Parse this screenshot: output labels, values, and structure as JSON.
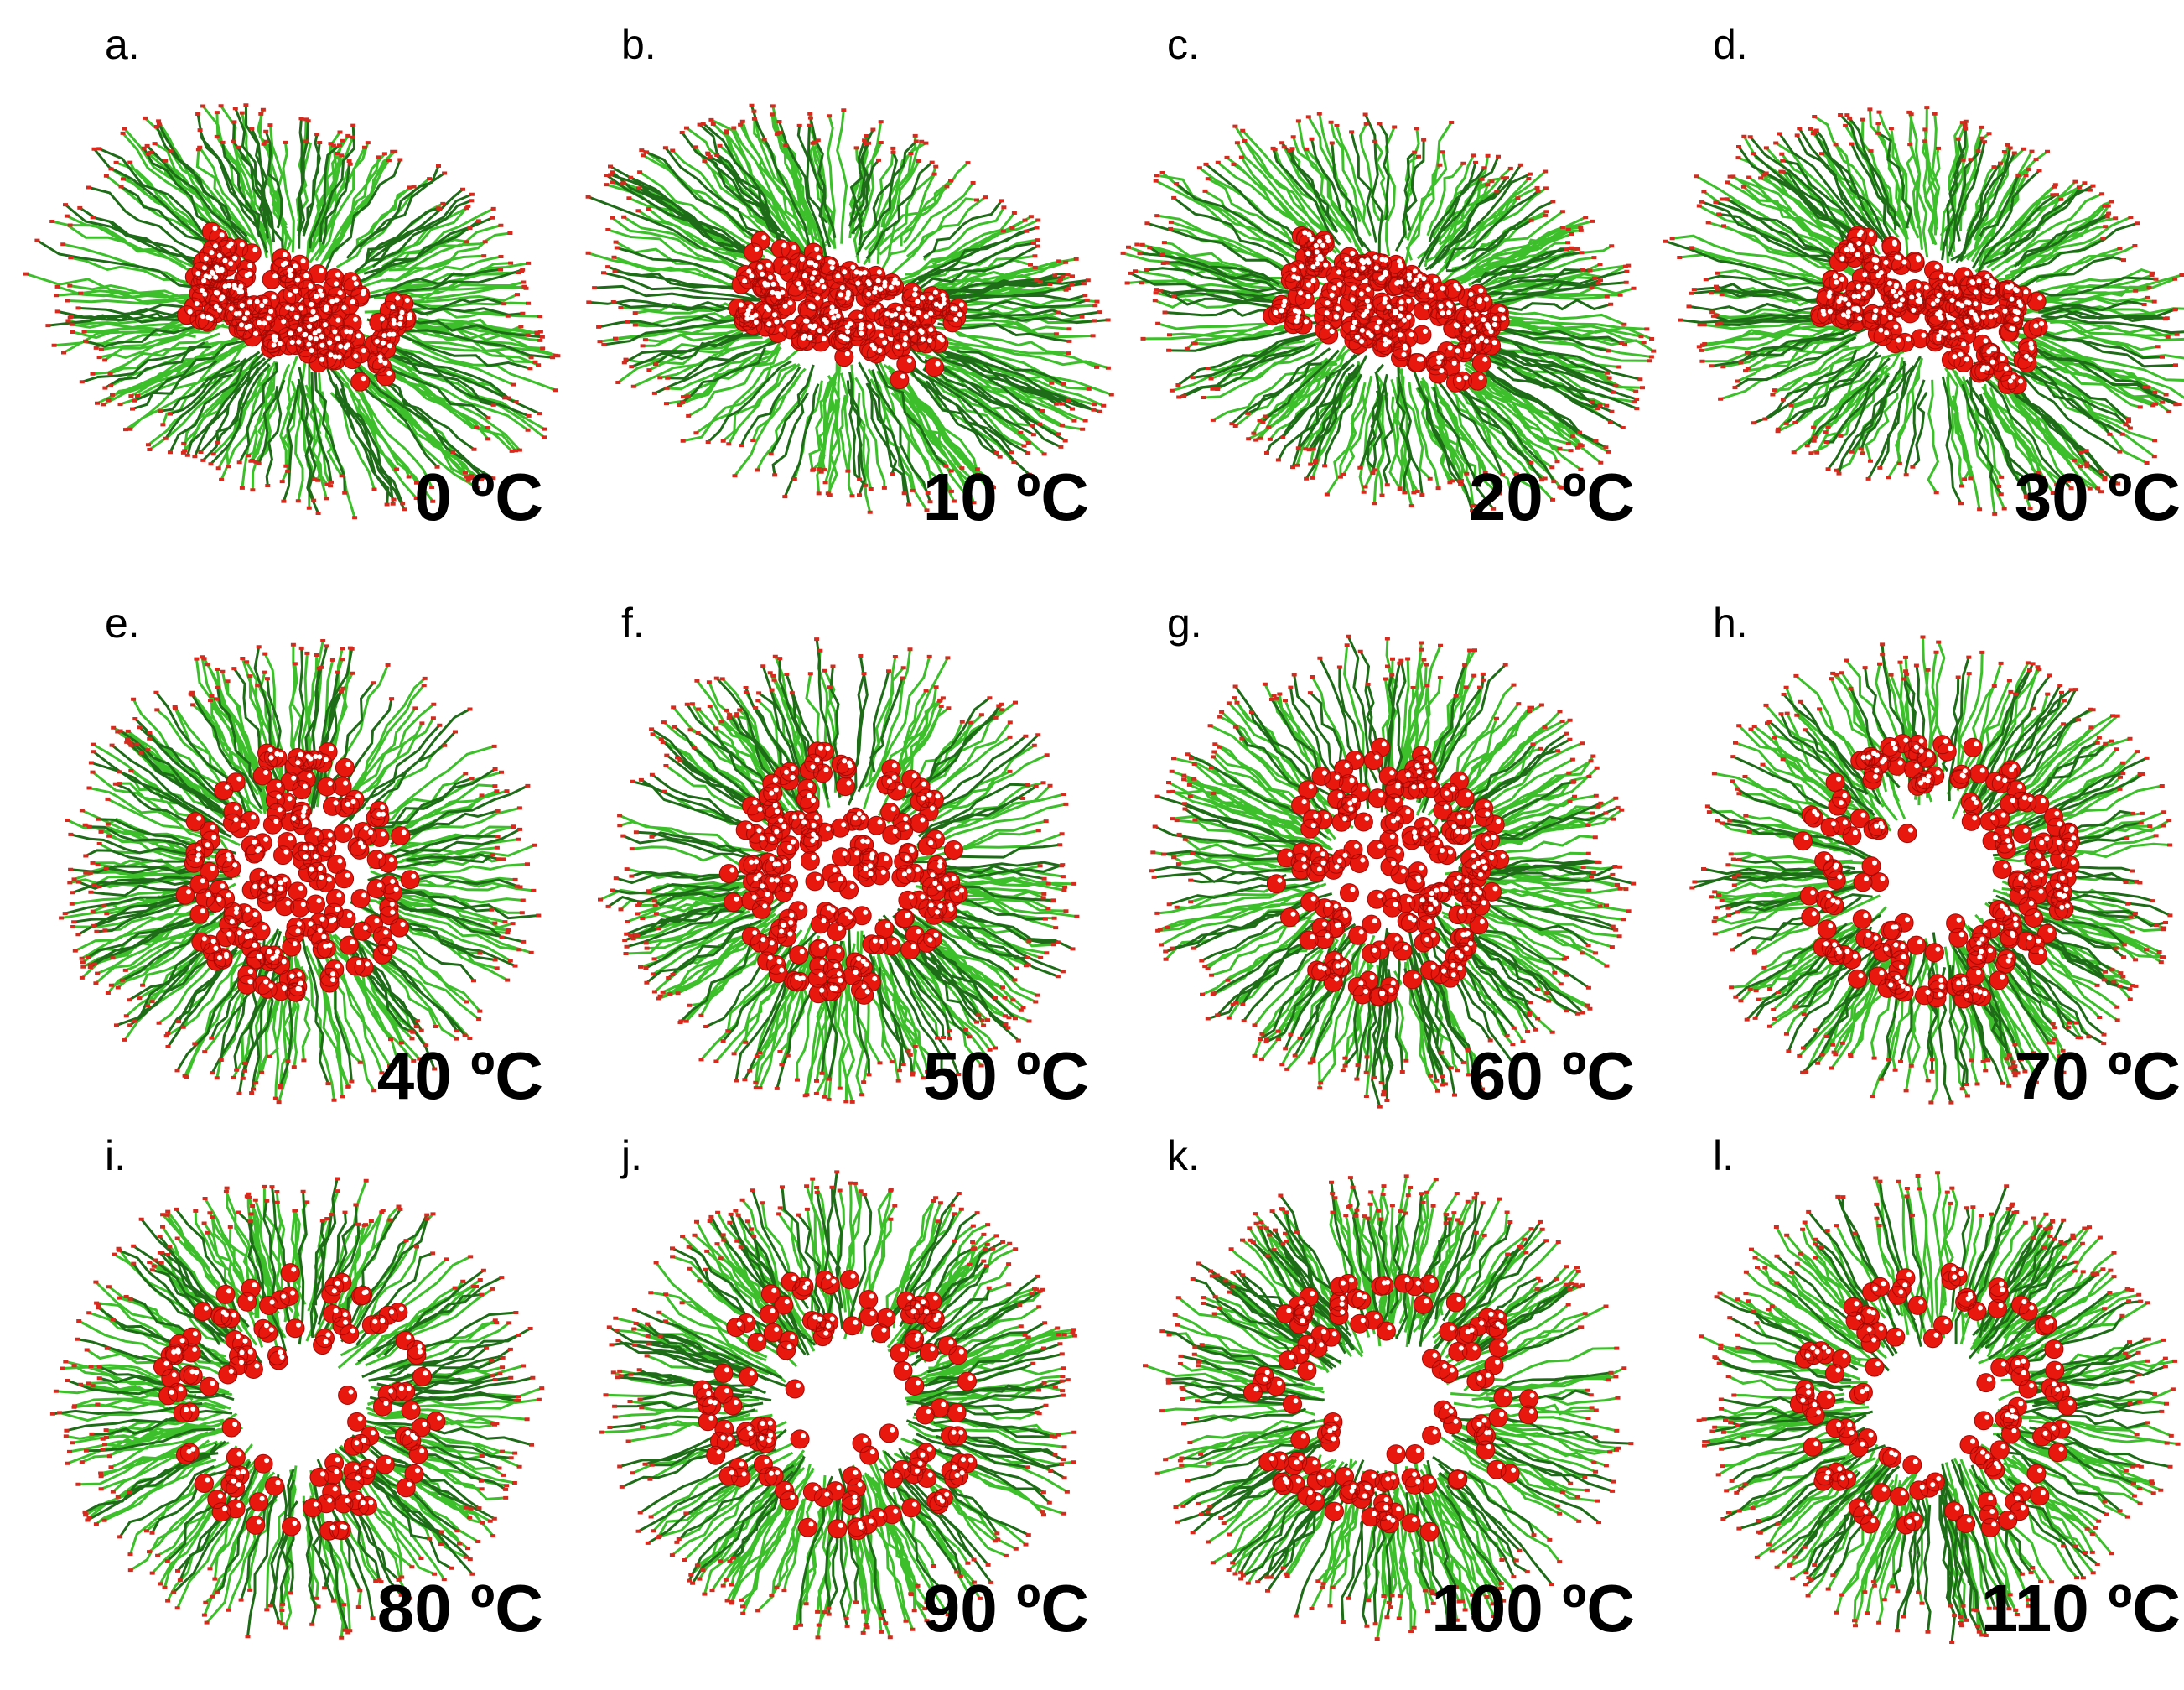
{
  "panels": [
    {
      "label": "a.",
      "caption": "0 ºC"
    },
    {
      "label": "b.",
      "caption": "10 ºC"
    },
    {
      "label": "c.",
      "caption": "20 ºC"
    },
    {
      "label": "d.",
      "caption": "30 ºC"
    },
    {
      "label": "e.",
      "caption": "40 ºC"
    },
    {
      "label": "f.",
      "caption": "50 ºC"
    },
    {
      "label": "g.",
      "caption": "60 ºC"
    },
    {
      "label": "h.",
      "caption": "70 ºC"
    },
    {
      "label": "i.",
      "caption": "80 ºC"
    },
    {
      "label": "j.",
      "caption": "90 ºC"
    },
    {
      "label": "k.",
      "caption": "100 ºC"
    },
    {
      "label": "l.",
      "caption": "110 ºC"
    }
  ]
}
